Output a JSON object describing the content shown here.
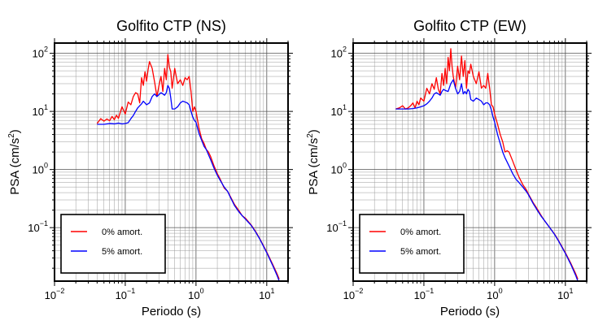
{
  "chart_data": [
    {
      "type": "line",
      "title": "Golfito CTP (NS)",
      "xlabel": "Periodo (s)",
      "ylabel": "PSA (cm/s",
      "ylabel_sup": "2",
      "ylabel_end": ")",
      "xscale": "log",
      "yscale": "log",
      "xlim": [
        0.01,
        20
      ],
      "ylim": [
        0.012,
        150
      ],
      "x_ticks": [
        {
          "base": "10",
          "exp": "−2",
          "value": 0.01
        },
        {
          "base": "10",
          "exp": "−1",
          "value": 0.1
        },
        {
          "base": "10",
          "exp": "0",
          "value": 1
        },
        {
          "base": "10",
          "exp": "1",
          "value": 10
        }
      ],
      "y_ticks": [
        {
          "base": "10",
          "exp": "−1",
          "value": 0.1
        },
        {
          "base": "10",
          "exp": "0",
          "value": 1
        },
        {
          "base": "10",
          "exp": "1",
          "value": 10
        },
        {
          "base": "10",
          "exp": "2",
          "value": 100
        }
      ],
      "grid": true,
      "legend_position": "bottom-left",
      "series": [
        {
          "name": "0% amort.",
          "color": "#ff0000",
          "x": [
            0.04,
            0.045,
            0.05,
            0.055,
            0.06,
            0.065,
            0.07,
            0.075,
            0.08,
            0.09,
            0.1,
            0.11,
            0.12,
            0.13,
            0.14,
            0.15,
            0.16,
            0.17,
            0.18,
            0.19,
            0.2,
            0.21,
            0.22,
            0.24,
            0.26,
            0.28,
            0.3,
            0.32,
            0.34,
            0.36,
            0.38,
            0.4,
            0.42,
            0.44,
            0.46,
            0.5,
            0.55,
            0.6,
            0.65,
            0.7,
            0.75,
            0.8,
            0.85,
            0.9,
            0.95,
            1.0,
            1.1,
            1.2,
            1.3,
            1.4,
            1.5,
            1.6,
            1.8,
            2.0,
            2.2,
            2.5,
            2.8,
            3.0,
            3.5,
            4.0,
            4.5,
            5.0,
            6.0,
            7.0,
            8.0,
            10.0,
            12.0,
            14.0,
            15.0
          ],
          "y": [
            6.2,
            7.5,
            6.8,
            7.4,
            6.9,
            8.2,
            7.2,
            8.6,
            7.6,
            12.0,
            9.0,
            14.5,
            13.0,
            18.0,
            21.0,
            20.0,
            14.0,
            38.0,
            28.0,
            48.0,
            33.0,
            52.0,
            72.0,
            55.0,
            32.0,
            18.0,
            28.0,
            40.0,
            22.0,
            55.0,
            35.0,
            95.0,
            58.0,
            48.0,
            25.0,
            55.0,
            30.0,
            35.0,
            28.0,
            38.0,
            35.0,
            40.0,
            22.0,
            10.0,
            12.0,
            10.0,
            5.2,
            3.4,
            2.8,
            2.2,
            2.0,
            1.7,
            1.15,
            0.85,
            0.68,
            0.48,
            0.42,
            0.36,
            0.25,
            0.2,
            0.16,
            0.145,
            0.112,
            0.085,
            0.064,
            0.038,
            0.024,
            0.016,
            0.013
          ]
        },
        {
          "name": "5% amort.",
          "color": "#0000ff",
          "x": [
            0.04,
            0.05,
            0.06,
            0.07,
            0.08,
            0.09,
            0.1,
            0.11,
            0.12,
            0.13,
            0.14,
            0.15,
            0.16,
            0.17,
            0.18,
            0.19,
            0.2,
            0.22,
            0.24,
            0.26,
            0.28,
            0.3,
            0.32,
            0.34,
            0.36,
            0.38,
            0.4,
            0.42,
            0.44,
            0.46,
            0.5,
            0.55,
            0.6,
            0.65,
            0.7,
            0.75,
            0.8,
            0.85,
            0.9,
            0.95,
            1.0,
            1.1,
            1.2,
            1.3,
            1.4,
            1.5,
            1.6,
            1.8,
            2.0,
            2.2,
            2.5,
            2.8,
            3.0,
            3.5,
            4.0,
            4.5,
            5.0,
            6.0,
            7.0,
            8.0,
            10.0,
            12.0,
            14.0,
            15.0
          ],
          "y": [
            6.0,
            6.0,
            6.2,
            6.1,
            6.3,
            6.1,
            6.2,
            6.4,
            7.5,
            8.5,
            10.0,
            11.5,
            12.5,
            13.5,
            15.0,
            14.0,
            13.0,
            14.0,
            18.0,
            20.0,
            18.0,
            19.5,
            21.0,
            20.0,
            19.0,
            21.0,
            28.0,
            25.0,
            17.0,
            11.0,
            11.0,
            12.0,
            14.0,
            15.0,
            14.5,
            14.0,
            13.0,
            10.0,
            8.0,
            7.0,
            6.5,
            4.2,
            3.2,
            2.5,
            2.2,
            1.8,
            1.5,
            1.05,
            0.8,
            0.65,
            0.5,
            0.42,
            0.35,
            0.24,
            0.19,
            0.16,
            0.14,
            0.11,
            0.083,
            0.063,
            0.037,
            0.023,
            0.015,
            0.012
          ]
        }
      ]
    },
    {
      "type": "line",
      "title": "Golfito CTP (EW)",
      "xlabel": "Periodo (s)",
      "ylabel": "PSA (cm/s",
      "ylabel_sup": "2",
      "ylabel_end": ")",
      "xscale": "log",
      "yscale": "log",
      "xlim": [
        0.01,
        20
      ],
      "ylim": [
        0.012,
        150
      ],
      "x_ticks": [
        {
          "base": "10",
          "exp": "−2",
          "value": 0.01
        },
        {
          "base": "10",
          "exp": "−1",
          "value": 0.1
        },
        {
          "base": "10",
          "exp": "0",
          "value": 1
        },
        {
          "base": "10",
          "exp": "1",
          "value": 10
        }
      ],
      "y_ticks": [
        {
          "base": "10",
          "exp": "−1",
          "value": 0.1
        },
        {
          "base": "10",
          "exp": "0",
          "value": 1
        },
        {
          "base": "10",
          "exp": "1",
          "value": 10
        },
        {
          "base": "10",
          "exp": "2",
          "value": 100
        }
      ],
      "grid": true,
      "legend_position": "bottom-left",
      "series": [
        {
          "name": "0% amort.",
          "color": "#ff0000",
          "x": [
            0.04,
            0.045,
            0.05,
            0.055,
            0.06,
            0.065,
            0.07,
            0.075,
            0.08,
            0.085,
            0.09,
            0.1,
            0.11,
            0.12,
            0.13,
            0.14,
            0.15,
            0.16,
            0.17,
            0.18,
            0.19,
            0.2,
            0.21,
            0.22,
            0.23,
            0.24,
            0.25,
            0.26,
            0.28,
            0.3,
            0.32,
            0.34,
            0.36,
            0.38,
            0.4,
            0.42,
            0.44,
            0.46,
            0.5,
            0.55,
            0.6,
            0.65,
            0.7,
            0.75,
            0.8,
            0.85,
            0.9,
            0.95,
            1.0,
            1.1,
            1.2,
            1.3,
            1.4,
            1.5,
            1.6,
            1.8,
            2.0,
            2.2,
            2.5,
            2.8,
            3.0,
            3.5,
            4.0,
            4.5,
            5.0,
            6.0,
            7.0,
            8.0,
            10.0,
            12.0,
            14.0,
            15.0
          ],
          "y": [
            11.0,
            11.5,
            12.5,
            11.0,
            11.5,
            12.5,
            14.0,
            11.5,
            15.0,
            13.0,
            17.0,
            15.0,
            25.0,
            20.0,
            30.0,
            24.0,
            38.0,
            24.0,
            20.0,
            45.0,
            28.0,
            55.0,
            30.0,
            85.0,
            50.0,
            120.0,
            60.0,
            40.0,
            25.0,
            60.0,
            35.0,
            90.0,
            40.0,
            75.0,
            25.0,
            50.0,
            45.0,
            65.0,
            40.0,
            30.0,
            48.0,
            25.0,
            28.0,
            25.0,
            45.0,
            25.0,
            13.0,
            12.0,
            9.0,
            6.0,
            4.0,
            3.0,
            2.0,
            2.1,
            2.0,
            1.4,
            1.0,
            0.75,
            0.55,
            0.45,
            0.38,
            0.27,
            0.21,
            0.165,
            0.135,
            0.1,
            0.078,
            0.06,
            0.037,
            0.024,
            0.016,
            0.013
          ]
        },
        {
          "name": "5% amort.",
          "color": "#0000ff",
          "x": [
            0.04,
            0.05,
            0.06,
            0.07,
            0.08,
            0.09,
            0.1,
            0.11,
            0.12,
            0.13,
            0.14,
            0.15,
            0.16,
            0.17,
            0.18,
            0.19,
            0.2,
            0.22,
            0.24,
            0.26,
            0.28,
            0.3,
            0.32,
            0.34,
            0.36,
            0.38,
            0.4,
            0.42,
            0.44,
            0.46,
            0.5,
            0.55,
            0.6,
            0.65,
            0.7,
            0.75,
            0.8,
            0.85,
            0.9,
            0.95,
            1.0,
            1.1,
            1.2,
            1.3,
            1.4,
            1.5,
            1.6,
            1.8,
            2.0,
            2.2,
            2.5,
            2.8,
            3.0,
            3.5,
            4.0,
            4.5,
            5.0,
            6.0,
            7.0,
            8.0,
            10.0,
            12.0,
            14.0,
            15.0
          ],
          "y": [
            11.0,
            11.0,
            11.0,
            11.2,
            11.5,
            12.0,
            12.5,
            13.5,
            15.0,
            17.0,
            20.0,
            21.0,
            20.0,
            19.0,
            22.0,
            24.0,
            23.0,
            22.0,
            30.0,
            35.0,
            25.0,
            20.0,
            22.0,
            30.0,
            20.0,
            22.0,
            20.0,
            24.0,
            22.0,
            16.0,
            15.0,
            17.0,
            16.0,
            15.0,
            13.0,
            14.0,
            14.0,
            13.0,
            10.5,
            8.0,
            6.5,
            4.0,
            2.8,
            2.0,
            1.6,
            1.35,
            1.15,
            0.85,
            0.68,
            0.6,
            0.5,
            0.42,
            0.37,
            0.26,
            0.2,
            0.16,
            0.135,
            0.1,
            0.077,
            0.059,
            0.036,
            0.023,
            0.015,
            0.012
          ]
        }
      ]
    }
  ]
}
